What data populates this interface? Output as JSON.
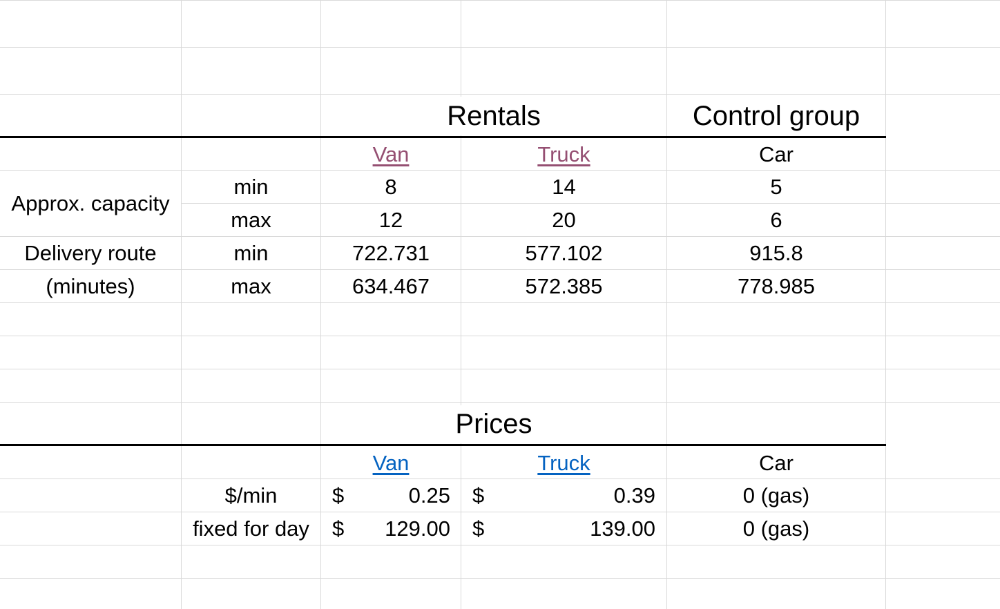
{
  "rentals": {
    "title": "Rentals",
    "control_title": "Control group",
    "columns": {
      "van": "Van",
      "truck": "Truck",
      "car": "Car"
    },
    "capacity": {
      "label": "Approx. capacity",
      "min_label": "min",
      "max_label": "max",
      "van": {
        "min": "8",
        "max": "12"
      },
      "truck": {
        "min": "14",
        "max": "20"
      },
      "car": {
        "min": "5",
        "max": "6"
      }
    },
    "route": {
      "label_line1": "Delivery route",
      "label_line2": "(minutes)",
      "min_label": "min",
      "max_label": "max",
      "van": {
        "min": "722.731",
        "max": "634.467"
      },
      "truck": {
        "min": "577.102",
        "max": "572.385"
      },
      "car": {
        "min": "915.8",
        "max": "778.985"
      }
    }
  },
  "prices": {
    "title": "Prices",
    "columns": {
      "van": "Van",
      "truck": "Truck",
      "car": "Car"
    },
    "rows": [
      {
        "label": "$/min",
        "currency": "$",
        "van": "0.25",
        "truck": "0.39",
        "car": "0 (gas)"
      },
      {
        "label": "fixed for day",
        "currency": "$",
        "van": "129.00",
        "truck": "139.00",
        "car": "0 (gas)"
      }
    ]
  },
  "colors": {
    "visited_link": "#954f72",
    "link": "#0563c1",
    "gridline": "#d9d9d9"
  }
}
